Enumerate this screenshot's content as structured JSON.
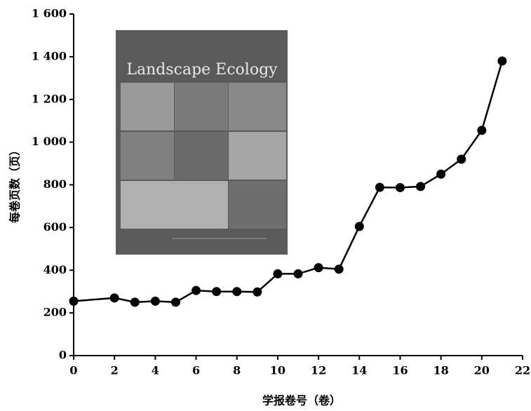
{
  "chart_data": {
    "type": "line",
    "x_label": "学报卷号（卷）",
    "y_label": "每卷页数（页）",
    "inset_title": "Landscape Ecology",
    "x": [
      0,
      2,
      3,
      4,
      5,
      6,
      7,
      8,
      9,
      10,
      11,
      12,
      13,
      14,
      15,
      16,
      17,
      18,
      19,
      20,
      21
    ],
    "series": [
      {
        "color": "#000000",
        "values": [
          255,
          270,
          250,
          255,
          250,
          305,
          300,
          300,
          298,
          383,
          383,
          412,
          405,
          605,
          788,
          787,
          792,
          850,
          920,
          1055,
          1380
        ]
      }
    ],
    "xlim": [
      0,
      22
    ],
    "xticks": [
      0,
      2,
      4,
      6,
      8,
      10,
      12,
      14,
      16,
      18,
      20,
      22
    ],
    "ylim": [
      0,
      1600
    ],
    "yticks": [
      0,
      200,
      400,
      600,
      800,
      {
        "value": 1000,
        "label": "1 000"
      },
      {
        "value": 1200,
        "label": "1 200"
      },
      {
        "value": 1400,
        "label": "1 400"
      },
      {
        "value": 1600,
        "label": "1 600"
      }
    ]
  }
}
